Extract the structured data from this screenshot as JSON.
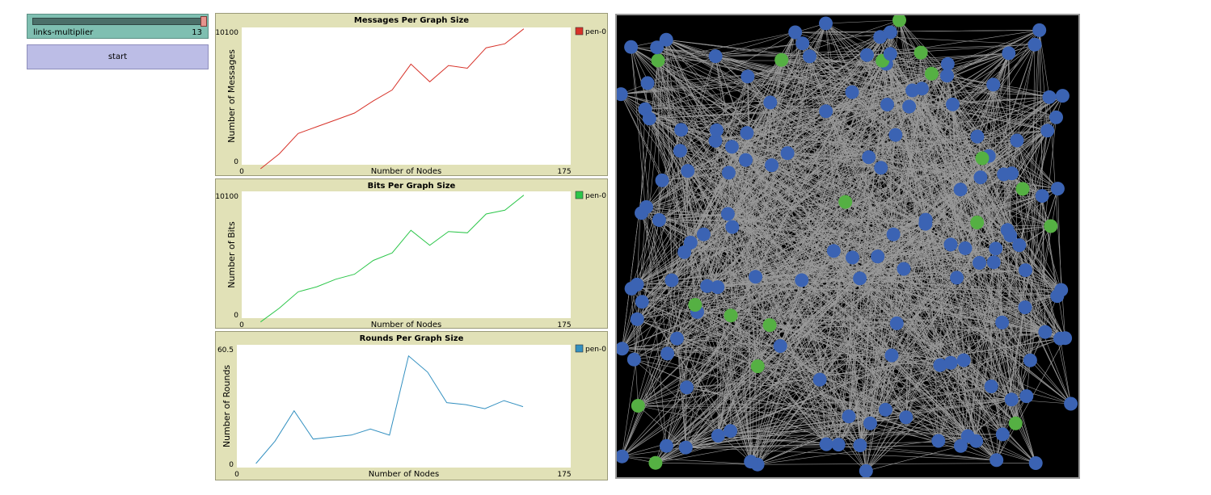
{
  "slider": {
    "name": "links-multiplier",
    "value": "13"
  },
  "button": {
    "label": "start"
  },
  "plots": [
    {
      "title": "Messages Per Graph Size",
      "ylabel": "Number of Messages",
      "xlabel": "Number of Nodes",
      "xmin": "0",
      "xmax": "175",
      "ymin": "0",
      "ymax": "10100",
      "legend": "pen-0",
      "color": "#d73229"
    },
    {
      "title": "Bits Per Graph Size",
      "ylabel": "Number of Bits",
      "xlabel": "Number of Nodes",
      "xmin": "0",
      "xmax": "175",
      "ymin": "0",
      "ymax": "10100",
      "legend": "pen-0",
      "color": "#2cc64a"
    },
    {
      "title": "Rounds Per Graph Size",
      "ylabel": "Number of Rounds",
      "xlabel": "Number of Nodes",
      "xmin": "0",
      "xmax": "175",
      "ymin": "0",
      "ymax": "60.5",
      "legend": "pen-0",
      "color": "#3390c0"
    }
  ],
  "chart_data": [
    {
      "type": "line",
      "title": "Messages Per Graph Size",
      "xlabel": "Number of Nodes",
      "ylabel": "Number of Messages",
      "xlim": [
        0,
        175
      ],
      "ylim": [
        0,
        10100
      ],
      "series": [
        {
          "name": "pen-0",
          "x": [
            10,
            20,
            30,
            40,
            50,
            60,
            70,
            80,
            90,
            100,
            110,
            120,
            130,
            140,
            150
          ],
          "values": [
            -300,
            800,
            2300,
            2800,
            3300,
            3800,
            4700,
            5500,
            7400,
            6100,
            7300,
            7100,
            8600,
            8900,
            10000
          ]
        }
      ]
    },
    {
      "type": "line",
      "title": "Bits Per Graph Size",
      "xlabel": "Number of Nodes",
      "ylabel": "Number of Bits",
      "xlim": [
        0,
        175
      ],
      "ylim": [
        0,
        10100
      ],
      "series": [
        {
          "name": "pen-0",
          "x": [
            10,
            20,
            30,
            40,
            50,
            60,
            70,
            80,
            90,
            100,
            110,
            120,
            130,
            140,
            150
          ],
          "values": [
            -300,
            800,
            2100,
            2500,
            3100,
            3500,
            4600,
            5200,
            7000,
            5800,
            6900,
            6800,
            8300,
            8600,
            9800
          ]
        }
      ]
    },
    {
      "type": "line",
      "title": "Rounds Per Graph Size",
      "xlabel": "Number of Nodes",
      "ylabel": "Number of Rounds",
      "xlim": [
        0,
        175
      ],
      "ylim": [
        0,
        60.5
      ],
      "series": [
        {
          "name": "pen-0",
          "x": [
            10,
            20,
            30,
            40,
            50,
            60,
            70,
            80,
            90,
            100,
            110,
            120,
            130,
            140,
            150
          ],
          "values": [
            2,
            13,
            28,
            14,
            15,
            16,
            19,
            16,
            55,
            47,
            32,
            31,
            29,
            33,
            30
          ]
        }
      ]
    }
  ],
  "world": {
    "background": "#000000",
    "link_color": "#9a9a9a",
    "node_blue": "#3b63b3",
    "node_green": "#55b043"
  }
}
